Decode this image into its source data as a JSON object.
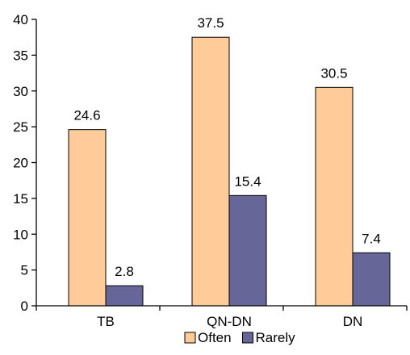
{
  "chart_data": {
    "type": "bar",
    "categories": [
      "TB",
      "QN-DN",
      "DN"
    ],
    "series": [
      {
        "name": "Often",
        "values": [
          24.6,
          37.5,
          30.5
        ],
        "color": "#FFCC99"
      },
      {
        "name": "Rarely",
        "values": [
          2.8,
          15.4,
          7.4
        ],
        "color": "#666699"
      }
    ],
    "data_labels": [
      [
        "24.6",
        "37.5",
        "30.5"
      ],
      [
        "2.8",
        "15.4",
        "7.4"
      ]
    ],
    "ylim": [
      0,
      40
    ],
    "yticks": [
      0,
      5,
      10,
      15,
      20,
      25,
      30,
      35,
      40
    ],
    "grid": false,
    "legend_position": "bottom",
    "title": "",
    "xlabel": "",
    "ylabel": ""
  }
}
